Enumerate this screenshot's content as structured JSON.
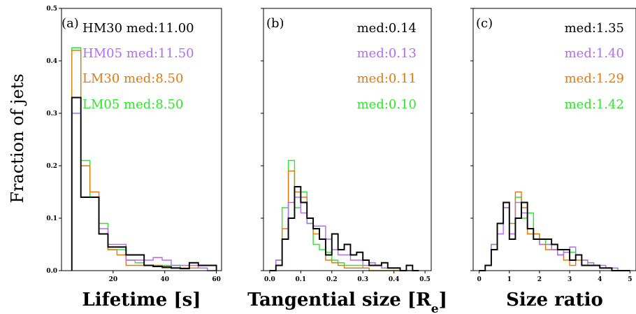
{
  "colors": {
    "HM30": "#000000",
    "HM05": "#b36bf0",
    "LM30": "#e07a10",
    "LM05": "#2ee62e"
  },
  "chart_data": [
    {
      "type": "histogram",
      "panel_label": "(a)",
      "xlabel": "Lifetime [s]",
      "ylabel": "Fraction of jets",
      "xlim": [
        0,
        62
      ],
      "ylim": [
        0,
        0.5
      ],
      "xticks": [
        20,
        40,
        60
      ],
      "yticks": [
        0.0,
        0.1,
        0.2,
        0.3,
        0.4,
        0.5
      ],
      "ytick_labels": [
        "0.0",
        "0.1",
        "0.2",
        "0.3",
        "0.4",
        "0.5"
      ],
      "bin_edges": [
        4,
        7.5,
        11,
        14.5,
        18,
        21.5,
        25,
        28.5,
        32,
        35.5,
        39,
        42.5,
        46,
        49.5,
        53,
        56.5,
        60
      ],
      "series": [
        {
          "name": "HM30",
          "values": [
            0.33,
            0.14,
            0.14,
            0.07,
            0.045,
            0.045,
            0.03,
            0.03,
            0.01,
            0.008,
            0.007,
            0.005,
            0.004,
            0.015,
            0.01,
            0.01
          ]
        },
        {
          "name": "HM05",
          "values": [
            0.3,
            0.14,
            0.14,
            0.08,
            0.05,
            0.05,
            0.02,
            0.02,
            0.02,
            0.025,
            0.02,
            0.01,
            0.01,
            0.01,
            0.005,
            0.0
          ]
        },
        {
          "name": "LM30",
          "values": [
            0.42,
            0.2,
            0.15,
            0.07,
            0.04,
            0.03,
            0.01,
            0.01,
            0.01,
            0.01,
            0.005,
            0.005,
            0.005,
            0.005,
            0.005,
            0.0
          ]
        },
        {
          "name": "LM05",
          "values": [
            0.425,
            0.21,
            0.14,
            0.09,
            0.04,
            0.04,
            0.02,
            0.015,
            0.01,
            0.01,
            0.01,
            0.01,
            0.005,
            0.005,
            0.005,
            0.0
          ]
        }
      ],
      "legend": [
        {
          "series": "HM30",
          "text": "HM30 med:11.00"
        },
        {
          "series": "HM05",
          "text": "HM05 med:11.50"
        },
        {
          "series": "LM30",
          "text": "LM30 med:8.50"
        },
        {
          "series": "LM05",
          "text": "LM05 med:8.50"
        }
      ]
    },
    {
      "type": "histogram",
      "panel_label": "(b)",
      "xlabel": "Tangential size [Re]",
      "xlim": [
        -0.02,
        0.52
      ],
      "ylim": [
        0,
        0.5
      ],
      "xticks": [
        0.0,
        0.1,
        0.2,
        0.3,
        0.4,
        0.5
      ],
      "bin_edges": [
        0.0,
        0.02,
        0.04,
        0.06,
        0.08,
        0.1,
        0.12,
        0.14,
        0.16,
        0.18,
        0.2,
        0.22,
        0.24,
        0.26,
        0.28,
        0.3,
        0.32,
        0.34,
        0.36,
        0.38,
        0.4,
        0.42,
        0.44,
        0.46,
        0.48
      ],
      "series": [
        {
          "name": "HM30",
          "values": [
            0.0,
            0.01,
            0.06,
            0.1,
            0.16,
            0.13,
            0.1,
            0.08,
            0.06,
            0.03,
            0.07,
            0.04,
            0.05,
            0.03,
            0.035,
            0.02,
            0.01,
            0.01,
            0.015,
            0.005,
            0.005,
            0.0,
            0.01,
            0.0
          ]
        },
        {
          "name": "HM05",
          "values": [
            0.0,
            0.02,
            0.06,
            0.13,
            0.14,
            0.11,
            0.09,
            0.085,
            0.085,
            0.06,
            0.04,
            0.03,
            0.03,
            0.02,
            0.02,
            0.01,
            0.015,
            0.01,
            0.005,
            0.005,
            0.005,
            0.0,
            0.0,
            0.0
          ]
        },
        {
          "name": "LM30",
          "values": [
            0.0,
            0.02,
            0.08,
            0.19,
            0.15,
            0.14,
            0.1,
            0.07,
            0.06,
            0.02,
            0.015,
            0.01,
            0.005,
            0.005,
            0.005,
            0.005,
            0.0,
            0.0,
            0.0,
            0.0,
            0.0,
            0.0,
            0.0,
            0.0
          ]
        },
        {
          "name": "LM05",
          "values": [
            0.0,
            0.01,
            0.12,
            0.21,
            0.12,
            0.15,
            0.09,
            0.05,
            0.04,
            0.035,
            0.02,
            0.015,
            0.01,
            0.01,
            0.01,
            0.005,
            0.0,
            0.0,
            0.0,
            0.0,
            0.0,
            0.0,
            0.0,
            0.0
          ]
        }
      ],
      "legend": [
        {
          "series": "HM30",
          "text": "med:0.14"
        },
        {
          "series": "HM05",
          "text": "med:0.13"
        },
        {
          "series": "LM30",
          "text": "med:0.11"
        },
        {
          "series": "LM05",
          "text": "med:0.10"
        }
      ]
    },
    {
      "type": "histogram",
      "panel_label": "(c)",
      "xlabel": "Size ratio",
      "xlim": [
        -0.2,
        5.2
      ],
      "ylim": [
        0,
        0.5
      ],
      "xticks": [
        0,
        1,
        2,
        3,
        4,
        5
      ],
      "bin_edges": [
        0.0,
        0.2,
        0.4,
        0.6,
        0.8,
        1.0,
        1.2,
        1.4,
        1.6,
        1.8,
        2.0,
        2.2,
        2.4,
        2.6,
        2.8,
        3.0,
        3.2,
        3.4,
        3.6,
        3.8,
        4.0,
        4.2,
        4.4,
        4.6,
        4.8,
        5.0
      ],
      "series": [
        {
          "name": "HM30",
          "values": [
            0.0,
            0.01,
            0.04,
            0.09,
            0.13,
            0.06,
            0.1,
            0.13,
            0.08,
            0.06,
            0.06,
            0.06,
            0.05,
            0.04,
            0.04,
            0.02,
            0.03,
            0.01,
            0.01,
            0.01,
            0.005,
            0.005,
            0.0,
            0.0,
            0.0
          ]
        },
        {
          "name": "HM05",
          "values": [
            0.0,
            0.01,
            0.05,
            0.07,
            0.12,
            0.07,
            0.13,
            0.11,
            0.08,
            0.06,
            0.05,
            0.05,
            0.04,
            0.03,
            0.035,
            0.045,
            0.03,
            0.02,
            0.015,
            0.01,
            0.01,
            0.005,
            0.005,
            0.0,
            0.0
          ]
        },
        {
          "name": "LM30",
          "values": [
            0.0,
            0.01,
            0.04,
            0.09,
            0.13,
            0.09,
            0.15,
            0.12,
            0.07,
            0.07,
            0.05,
            0.04,
            0.04,
            0.03,
            0.02,
            0.01,
            0.02,
            0.01,
            0.01,
            0.01,
            0.005,
            0.005,
            0.0,
            0.0,
            0.0
          ]
        },
        {
          "name": "LM05",
          "values": [
            0.0,
            0.01,
            0.05,
            0.09,
            0.12,
            0.06,
            0.14,
            0.1,
            0.11,
            0.07,
            0.06,
            0.05,
            0.04,
            0.03,
            0.04,
            0.035,
            0.03,
            0.02,
            0.01,
            0.01,
            0.005,
            0.005,
            0.0,
            0.0,
            0.0
          ]
        }
      ],
      "legend": [
        {
          "series": "HM30",
          "text": "med:1.35"
        },
        {
          "series": "HM05",
          "text": "med:1.40"
        },
        {
          "series": "LM30",
          "text": "med:1.29"
        },
        {
          "series": "LM05",
          "text": "med:1.42"
        }
      ]
    }
  ]
}
